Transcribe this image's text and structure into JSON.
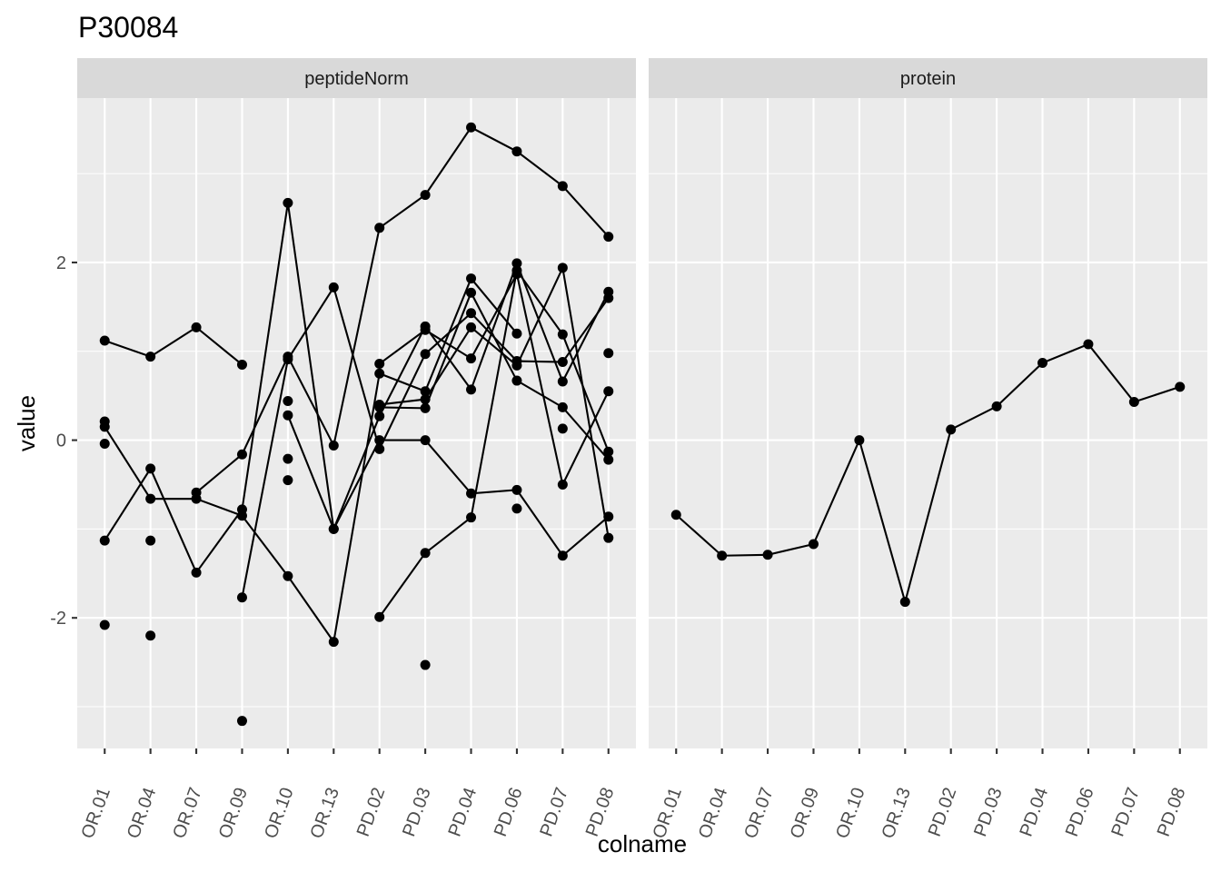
{
  "chart_data": {
    "type": "line",
    "title": "P30084",
    "xlabel": "colname",
    "ylabel": "value",
    "categories": [
      "OR.01",
      "OR.04",
      "OR.07",
      "OR.09",
      "OR.10",
      "OR.13",
      "PD.02",
      "PD.03",
      "PD.04",
      "PD.06",
      "PD.07",
      "PD.08"
    ],
    "ylim": [
      -3.47,
      3.85
    ],
    "yticks": [
      -2,
      0,
      2
    ],
    "ytick_labels": [
      "-2",
      "0",
      "2"
    ],
    "ytick_minor": [
      -3,
      -1,
      1,
      3
    ],
    "grid": true,
    "legend": "none",
    "colors": {
      "panel": "#ebebeb",
      "strip": "#d9d9d9",
      "grid": "#ffffff",
      "ink": "#000000",
      "tick_text": "#4d4d4d"
    },
    "panels": [
      {
        "label": "peptideNorm",
        "series": [
          {
            "values": [
              1.12,
              0.94,
              1.27,
              0.85,
              null,
              null,
              null,
              null,
              null,
              null,
              null,
              null
            ]
          },
          {
            "values": [
              0.15,
              -0.66,
              -0.66,
              -0.85,
              -1.53,
              -2.27,
              0.75,
              0.55,
              1.82,
              1.2,
              null,
              null
            ]
          },
          {
            "values": [
              null,
              null,
              -0.59,
              -0.16,
              0.94,
              -0.06,
              2.39,
              2.76,
              3.52,
              3.25,
              2.86,
              2.29
            ]
          },
          {
            "values": [
              -1.13,
              -0.32,
              -1.49,
              -0.78,
              2.67,
              -1.0,
              0.0,
              0.0,
              -0.6,
              -0.56,
              -1.3,
              -0.86
            ]
          },
          {
            "values": [
              null,
              null,
              null,
              -1.77,
              0.91,
              1.72,
              -0.1,
              0.97,
              1.43,
              0.89,
              0.88,
              1.6
            ]
          },
          {
            "values": [
              null,
              null,
              null,
              null,
              0.28,
              -1.0,
              0.27,
              1.28,
              0.57,
              1.99,
              0.66,
              1.67
            ]
          },
          {
            "values": [
              null,
              null,
              null,
              null,
              null,
              null,
              -1.99,
              -1.27,
              -0.87,
              1.91,
              1.19,
              -0.13
            ]
          },
          {
            "values": [
              null,
              null,
              null,
              null,
              null,
              null,
              0.86,
              1.24,
              0.92,
              1.87,
              -0.5,
              0.55
            ]
          },
          {
            "values": [
              null,
              null,
              null,
              null,
              null,
              null,
              0.4,
              0.46,
              1.27,
              0.84,
              1.94,
              -1.1
            ]
          },
          {
            "values": [
              null,
              null,
              null,
              null,
              null,
              null,
              0.37,
              0.36,
              1.66,
              0.67,
              0.37,
              -0.22
            ]
          }
        ],
        "points": [
          {
            "x": "OR.01",
            "y": 0.21
          },
          {
            "x": "OR.01",
            "y": -0.04
          },
          {
            "x": "OR.01",
            "y": -2.08
          },
          {
            "x": "OR.04",
            "y": -1.13
          },
          {
            "x": "OR.04",
            "y": -2.2
          },
          {
            "x": "OR.09",
            "y": -3.16
          },
          {
            "x": "OR.10",
            "y": 0.44
          },
          {
            "x": "OR.10",
            "y": -0.21
          },
          {
            "x": "OR.10",
            "y": -0.45
          },
          {
            "x": "PD.03",
            "y": -2.53
          },
          {
            "x": "PD.06",
            "y": -0.77
          },
          {
            "x": "PD.07",
            "y": 0.13
          },
          {
            "x": "PD.08",
            "y": 0.98
          }
        ]
      },
      {
        "label": "protein",
        "series": [
          {
            "values": [
              -0.84,
              -1.3,
              -1.29,
              -1.17,
              0.0,
              -1.82,
              0.12,
              0.38,
              0.87,
              1.08,
              0.43,
              0.6
            ]
          }
        ],
        "points": []
      }
    ]
  }
}
